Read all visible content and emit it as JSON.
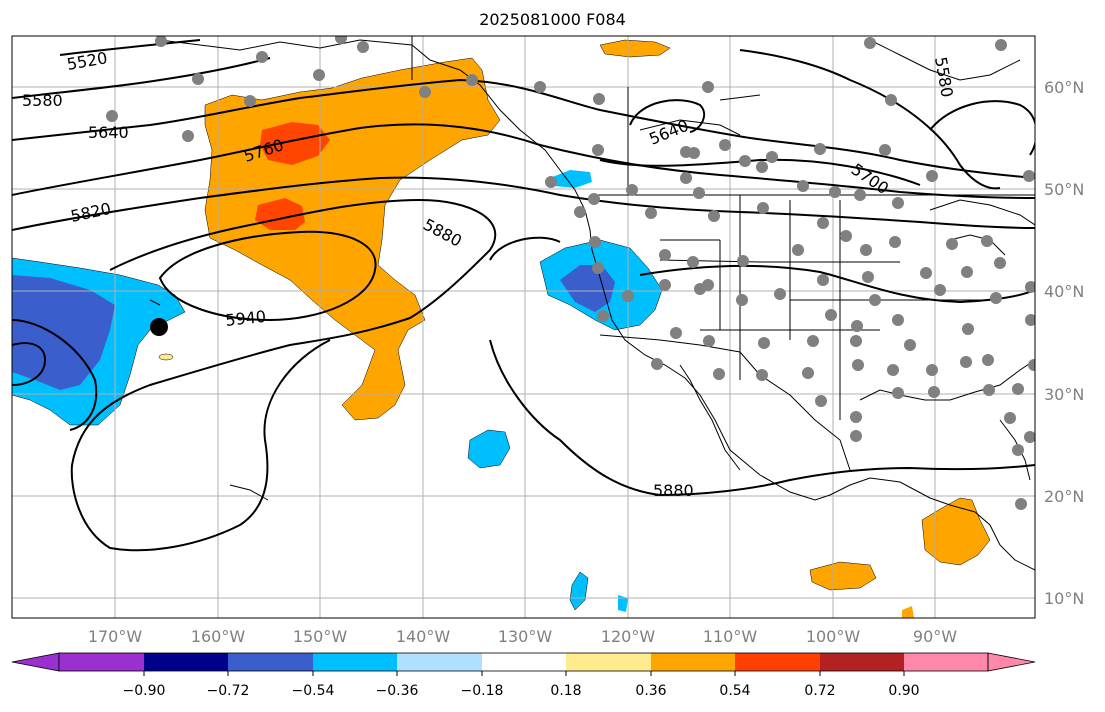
{
  "title": "2025081000 F084",
  "lat_labels": [
    "60°N",
    "50°N",
    "40°N",
    "30°N",
    "20°N",
    "10°N"
  ],
  "lon_labels": [
    "170°W",
    "160°W",
    "150°W",
    "140°W",
    "130°W",
    "120°W",
    "110°W",
    "100°W",
    "90°W"
  ],
  "colorbar": {
    "tick_labels": [
      "−0.90",
      "−0.72",
      "−0.54",
      "−0.36",
      "−0.18",
      "0.18",
      "0.36",
      "0.54",
      "0.72",
      "0.90"
    ],
    "colors": [
      "#9b30d0",
      "#00008b",
      "#3a5fcd",
      "#00bfff",
      "#b0e0ff",
      "#ffffff",
      "#ffea8c",
      "#ffa500",
      "#ff4000",
      "#b22222",
      "#ff88aa"
    ]
  },
  "contour_labels": [
    "5520",
    "5580",
    "5640",
    "5760",
    "5820",
    "5880",
    "5940",
    "5640",
    "5580",
    "5700",
    "5880"
  ],
  "colors": {
    "orange": "#ffa500",
    "red_orange": "#ff4500",
    "light_blue": "#00bfff",
    "medium_blue": "#3a5fcd",
    "station": "#808080",
    "grid": "#b0b0b0"
  }
}
